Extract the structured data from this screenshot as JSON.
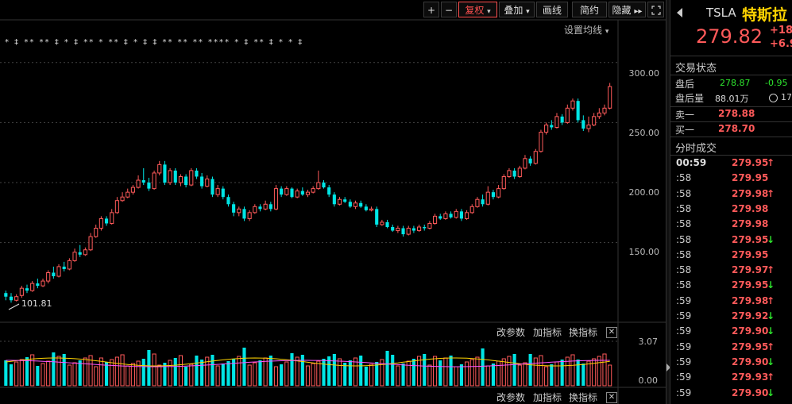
{
  "toolbar": {
    "plus_label": "+",
    "minus_label": "−",
    "adjust_label": "复权",
    "overlay_label": "叠加",
    "draw_label": "画线",
    "simple_label": "简约",
    "hide_label": "隐藏",
    "expand_arrows": "▸▸",
    "fullscreen_icon": "fullscreen-icon"
  },
  "ma_settings_label": "设置均线",
  "dropdown_arrow": "▾",
  "price_axis": [
    "300.00",
    "250.00",
    "200.00",
    "150.00"
  ],
  "min_label": "101.81",
  "volume_axis": [
    "3.07",
    "0.00"
  ],
  "indicator_links": {
    "change_params": "改参数",
    "add_indicator": "加指标",
    "switch_indicator": "换指标",
    "close": "✕"
  },
  "event_markers": "* ‡ ** ** ‡ * ‡ ** * ** ‡ * ‡ ‡ ** ** ** **** * ‡ ** ‡ * * ‡",
  "colors": {
    "up": "#ff5a5a",
    "down": "#00e5e5",
    "bg": "#000000",
    "grid": "#333333",
    "accent_yellow": "#ffd400"
  },
  "quote": {
    "symbol": "TSLA",
    "name": "特斯拉",
    "price": "279.82",
    "change": "+18.",
    "change_pct": "+6.9",
    "back_icon": "back-arrow-icon"
  },
  "status": {
    "title": "交易状态",
    "after_hours_label": "盘后",
    "after_hours_price": "278.87",
    "after_hours_change": "-0.95",
    "after_volume_label": "盘后量",
    "after_volume": "88.01万",
    "time_partial": "17",
    "ask_label": "卖一",
    "ask_price": "278.88",
    "bid_label": "买一",
    "bid_price": "278.70"
  },
  "trades_title": "分时成交",
  "trades": [
    {
      "time": "00:59",
      "price": "279.95",
      "dir": "up"
    },
    {
      "time": ":58",
      "price": "279.95",
      "dir": ""
    },
    {
      "time": ":58",
      "price": "279.98",
      "dir": "up"
    },
    {
      "time": ":58",
      "price": "279.98",
      "dir": ""
    },
    {
      "time": ":58",
      "price": "279.98",
      "dir": ""
    },
    {
      "time": ":58",
      "price": "279.95",
      "dir": "down"
    },
    {
      "time": ":58",
      "price": "279.95",
      "dir": ""
    },
    {
      "time": ":58",
      "price": "279.97",
      "dir": "up"
    },
    {
      "time": ":58",
      "price": "279.95",
      "dir": "down"
    },
    {
      "time": ":59",
      "price": "279.98",
      "dir": "up"
    },
    {
      "time": ":59",
      "price": "279.92",
      "dir": "down"
    },
    {
      "time": ":59",
      "price": "279.90",
      "dir": "down"
    },
    {
      "time": ":59",
      "price": "279.95",
      "dir": "up"
    },
    {
      "time": ":59",
      "price": "279.90",
      "dir": "down"
    },
    {
      "time": ":59",
      "price": "279.93",
      "dir": "up"
    },
    {
      "time": ":59",
      "price": "279.90",
      "dir": "down"
    }
  ],
  "chart_data": {
    "type": "candlestick",
    "y_range": [
      85,
      323
    ],
    "volume_range": [
      0,
      3.07
    ],
    "candles": [
      [
        108,
        105,
        110,
        102
      ],
      [
        105,
        102,
        108,
        100
      ],
      [
        102,
        105,
        107,
        101
      ],
      [
        106,
        112,
        114,
        104
      ],
      [
        112,
        110,
        115,
        108
      ],
      [
        110,
        116,
        118,
        109
      ],
      [
        116,
        114,
        120,
        112
      ],
      [
        114,
        118,
        120,
        113
      ],
      [
        118,
        125,
        127,
        116
      ],
      [
        125,
        122,
        130,
        120
      ],
      [
        122,
        130,
        132,
        121
      ],
      [
        130,
        128,
        134,
        126
      ],
      [
        128,
        135,
        137,
        127
      ],
      [
        135,
        142,
        145,
        134
      ],
      [
        142,
        140,
        148,
        138
      ],
      [
        140,
        144,
        146,
        139
      ],
      [
        144,
        155,
        158,
        143
      ],
      [
        155,
        162,
        165,
        154
      ],
      [
        162,
        170,
        172,
        160
      ],
      [
        170,
        166,
        172,
        164
      ],
      [
        166,
        175,
        178,
        165
      ],
      [
        175,
        185,
        188,
        174
      ],
      [
        185,
        188,
        192,
        184
      ],
      [
        188,
        192,
        195,
        187
      ],
      [
        192,
        196,
        198,
        190
      ],
      [
        196,
        202,
        206,
        195
      ],
      [
        202,
        200,
        212,
        198
      ],
      [
        200,
        195,
        204,
        193
      ],
      [
        195,
        208,
        210,
        194
      ],
      [
        208,
        215,
        218,
        206
      ],
      [
        215,
        200,
        218,
        198
      ],
      [
        200,
        210,
        212,
        198
      ],
      [
        210,
        200,
        212,
        198
      ],
      [
        200,
        205,
        207,
        197
      ],
      [
        205,
        198,
        207,
        196
      ],
      [
        198,
        210,
        212,
        197
      ],
      [
        210,
        205,
        212,
        203
      ],
      [
        205,
        197,
        208,
        195
      ],
      [
        197,
        203,
        206,
        196
      ],
      [
        203,
        190,
        205,
        188
      ],
      [
        190,
        195,
        198,
        188
      ],
      [
        195,
        188,
        197,
        186
      ],
      [
        188,
        182,
        190,
        180
      ],
      [
        182,
        175,
        184,
        172
      ],
      [
        175,
        178,
        180,
        172
      ],
      [
        178,
        170,
        180,
        168
      ],
      [
        170,
        175,
        177,
        168
      ],
      [
        175,
        180,
        182,
        174
      ],
      [
        180,
        178,
        182,
        176
      ],
      [
        178,
        182,
        185,
        177
      ],
      [
        182,
        178,
        184,
        176
      ],
      [
        178,
        195,
        198,
        177
      ],
      [
        195,
        190,
        197,
        188
      ],
      [
        190,
        195,
        197,
        189
      ],
      [
        195,
        188,
        196,
        187
      ],
      [
        188,
        193,
        195,
        187
      ],
      [
        193,
        190,
        196,
        189
      ],
      [
        190,
        192,
        194,
        188
      ],
      [
        192,
        195,
        197,
        191
      ],
      [
        195,
        200,
        210,
        194
      ],
      [
        200,
        196,
        202,
        195
      ],
      [
        196,
        190,
        198,
        188
      ],
      [
        190,
        182,
        192,
        180
      ],
      [
        182,
        186,
        188,
        181
      ],
      [
        186,
        184,
        188,
        183
      ],
      [
        184,
        180,
        186,
        179
      ],
      [
        180,
        183,
        185,
        178
      ],
      [
        183,
        180,
        185,
        179
      ],
      [
        180,
        177,
        182,
        176
      ],
      [
        177,
        178,
        180,
        176
      ],
      [
        178,
        165,
        180,
        163
      ],
      [
        165,
        167,
        169,
        164
      ],
      [
        167,
        163,
        169,
        162
      ],
      [
        163,
        160,
        165,
        159
      ],
      [
        160,
        162,
        164,
        158
      ],
      [
        162,
        157,
        164,
        155
      ],
      [
        157,
        162,
        164,
        156
      ],
      [
        162,
        160,
        164,
        158
      ],
      [
        160,
        163,
        165,
        159
      ],
      [
        163,
        162,
        165,
        160
      ],
      [
        162,
        166,
        168,
        161
      ],
      [
        166,
        172,
        174,
        165
      ],
      [
        172,
        170,
        174,
        169
      ],
      [
        170,
        174,
        176,
        169
      ],
      [
        174,
        171,
        176,
        170
      ],
      [
        171,
        176,
        178,
        170
      ],
      [
        176,
        170,
        178,
        168
      ],
      [
        170,
        175,
        177,
        169
      ],
      [
        175,
        180,
        182,
        174
      ],
      [
        180,
        186,
        188,
        179
      ],
      [
        186,
        182,
        190,
        180
      ],
      [
        182,
        192,
        197,
        181
      ],
      [
        192,
        188,
        194,
        186
      ],
      [
        188,
        195,
        198,
        187
      ],
      [
        195,
        205,
        207,
        194
      ],
      [
        205,
        210,
        212,
        204
      ],
      [
        210,
        205,
        212,
        203
      ],
      [
        205,
        212,
        214,
        204
      ],
      [
        212,
        220,
        223,
        211
      ],
      [
        220,
        216,
        222,
        214
      ],
      [
        216,
        226,
        228,
        215
      ],
      [
        226,
        242,
        244,
        225
      ],
      [
        242,
        248,
        250,
        240
      ],
      [
        248,
        246,
        252,
        244
      ],
      [
        246,
        255,
        258,
        245
      ],
      [
        255,
        250,
        257,
        248
      ],
      [
        250,
        262,
        265,
        249
      ],
      [
        262,
        268,
        270,
        260
      ],
      [
        268,
        252,
        270,
        250
      ],
      [
        252,
        245,
        256,
        243
      ],
      [
        245,
        248,
        255,
        242
      ],
      [
        248,
        255,
        258,
        247
      ],
      [
        255,
        258,
        262,
        253
      ],
      [
        258,
        262,
        265,
        256
      ],
      [
        262,
        280,
        283,
        261
      ]
    ]
  }
}
